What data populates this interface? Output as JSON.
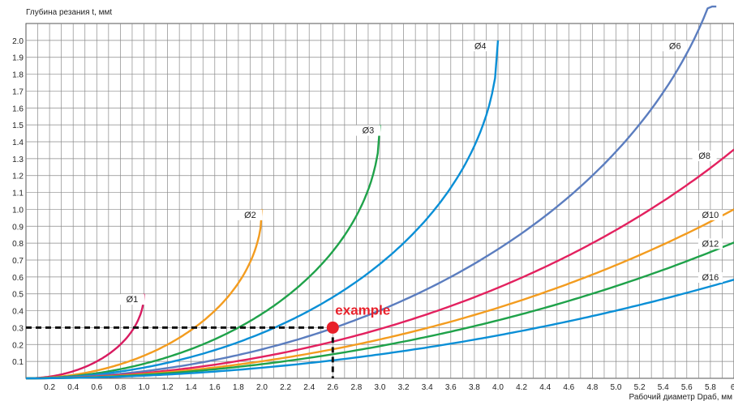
{
  "chart_data": {
    "type": "line",
    "ylabel": "Глубина резания t, ммt",
    "xlabel": "Рабочий диаметр Dраб, мм",
    "xlim": [
      0,
      6.0
    ],
    "ylim": [
      0,
      2.1
    ],
    "x_ticks": [
      "0.2",
      "0.4",
      "0.6",
      "0.8",
      "1.0",
      "1.2",
      "1.4",
      "1.6",
      "1.8",
      "2.0",
      "2.2",
      "2.4",
      "2.6",
      "2.8",
      "3.0",
      "3.2",
      "3.4",
      "3.6",
      "3.8",
      "4.0",
      "4.2",
      "4.4",
      "4.6",
      "4.8",
      "5.0",
      "5.2",
      "5.4",
      "5.6",
      "5.8",
      "6."
    ],
    "y_ticks": [
      "0.1",
      "0.2",
      "0.3",
      "0.4",
      "0.5",
      "0.6",
      "0.7",
      "0.8",
      "0.9",
      "1.0",
      "1.1",
      "1.2",
      "1.3",
      "1.4",
      "1.5",
      "1.6",
      "1.7",
      "1.8",
      "1.9",
      "2.0"
    ],
    "grid": true,
    "series": [
      {
        "name": "Ø1",
        "color": "#d81b60",
        "tool_d": 1,
        "x": [
          0,
          0.2,
          0.4,
          0.6,
          0.8,
          0.9,
          0.95,
          1.0
        ],
        "y": [
          0,
          0.01,
          0.04,
          0.1,
          0.2,
          0.28,
          0.35,
          0.5
        ]
      },
      {
        "name": "Ø2",
        "color": "#f39c1f",
        "tool_d": 2,
        "x": [
          0,
          0.4,
          0.8,
          1.2,
          1.5,
          1.8,
          1.95,
          2.0
        ],
        "y": [
          0,
          0.02,
          0.08,
          0.2,
          0.34,
          0.56,
          0.75,
          1.0
        ]
      },
      {
        "name": "Ø3",
        "color": "#1fa24a",
        "tool_d": 3,
        "x": [
          0,
          0.6,
          1.2,
          1.8,
          2.4,
          2.7,
          2.9,
          3.0
        ],
        "y": [
          0,
          0.03,
          0.12,
          0.3,
          0.62,
          0.85,
          1.15,
          1.5
        ]
      },
      {
        "name": "Ø4",
        "color": "#0a8fd6",
        "tool_d": 4,
        "x": [
          0,
          0.8,
          1.6,
          2.4,
          3.2,
          3.6,
          3.9,
          4.0
        ],
        "y": [
          0,
          0.04,
          0.16,
          0.4,
          0.8,
          1.13,
          1.55,
          2.0
        ]
      },
      {
        "name": "Ø6",
        "color": "#5b7dbf",
        "tool_d": 6,
        "x": [
          0,
          1.2,
          2.4,
          3.6,
          4.8,
          5.4,
          5.85
        ],
        "y": [
          0,
          0.06,
          0.25,
          0.6,
          1.2,
          1.7,
          2.17
        ]
      },
      {
        "name": "Ø8",
        "color": "#e3215f",
        "tool_d": 8,
        "x": [
          0,
          1.6,
          3.2,
          4.8,
          5.6,
          6.0
        ],
        "y": [
          0,
          0.08,
          0.33,
          0.8,
          1.14,
          1.33
        ]
      },
      {
        "name": "Ø10",
        "color": "#f39c1f",
        "tool_d": 10,
        "x": [
          0,
          2.0,
          4.0,
          5.0,
          6.0
        ],
        "y": [
          0,
          0.1,
          0.42,
          0.67,
          0.98
        ]
      },
      {
        "name": "Ø12",
        "color": "#1fa24a",
        "tool_d": 12,
        "x": [
          0,
          2.4,
          4.8,
          5.4,
          6.0
        ],
        "y": [
          0,
          0.12,
          0.5,
          0.63,
          0.78
        ]
      },
      {
        "name": "Ø16",
        "color": "#0a8fd6",
        "tool_d": 16,
        "x": [
          0,
          3.2,
          5.2,
          6.0
        ],
        "y": [
          0,
          0.16,
          0.42,
          0.6
        ]
      }
    ],
    "annotation": {
      "text": "example",
      "x": 2.6,
      "y": 0.3,
      "color": "#e8202a"
    },
    "label_positions": {
      "Ø1": [
        0.9,
        0.45
      ],
      "Ø2": [
        1.9,
        0.95
      ],
      "Ø3": [
        2.9,
        1.45
      ],
      "Ø4": [
        3.85,
        1.95
      ],
      "Ø6": [
        5.5,
        1.95
      ],
      "Ø8": [
        5.75,
        1.3
      ],
      "Ø10": [
        5.8,
        0.95
      ],
      "Ø12": [
        5.8,
        0.78
      ],
      "Ø16": [
        5.8,
        0.58
      ]
    }
  }
}
